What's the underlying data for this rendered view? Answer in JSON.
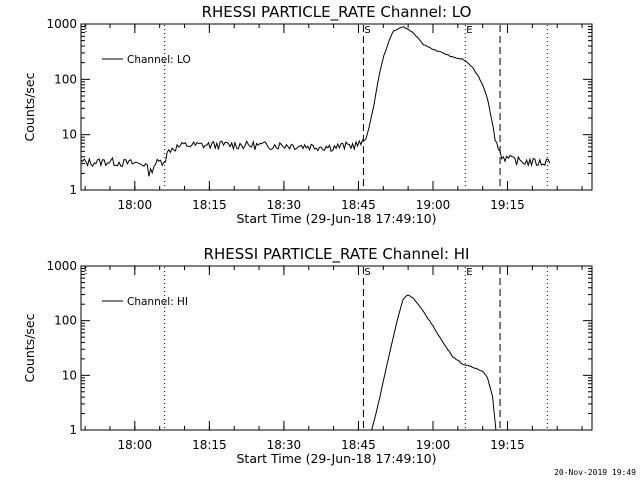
{
  "chart_data": [
    {
      "type": "line",
      "title": "RHESSI PARTICLE_RATE Channel: LO",
      "xlabel": "Start Time (29-Jun-18 17:49:10)",
      "ylabel": "Counts/sec",
      "yscale": "log",
      "ylim": [
        1,
        1000
      ],
      "xlim": [
        "17:49:10",
        "19:32:00"
      ],
      "x_ticks": [
        "18:00",
        "18:15",
        "18:30",
        "18:45",
        "19:00",
        "19:15"
      ],
      "y_ticks": [
        "1",
        "10",
        "100",
        "1000"
      ],
      "legend": "Channel: LO",
      "legend_position": "top-left",
      "markers": [
        {
          "time": "18:06:00",
          "style": "dotted",
          "label": ""
        },
        {
          "time": "18:46:00",
          "style": "dashed",
          "label": "S"
        },
        {
          "time": "19:06:30",
          "style": "dotted",
          "label": "E"
        },
        {
          "time": "19:13:30",
          "style": "dashed",
          "label": ""
        },
        {
          "time": "19:23:00",
          "style": "dotted",
          "label": ""
        }
      ],
      "series": [
        {
          "name": "Channel: LO",
          "x": [
            "17:49:10",
            "17:52:00",
            "17:55:00",
            "17:58:00",
            "18:02:00",
            "18:03:00",
            "18:04:00",
            "18:06:00",
            "18:07:00",
            "18:10:00",
            "18:15:00",
            "18:20:00",
            "18:25:00",
            "18:30:00",
            "18:35:00",
            "18:40:00",
            "18:44:00",
            "18:46:00",
            "18:47:00",
            "18:48:00",
            "18:49:00",
            "18:50:00",
            "18:51:00",
            "18:52:00",
            "18:54:00",
            "18:56:00",
            "18:58:00",
            "19:00:00",
            "19:02:00",
            "19:04:00",
            "19:06:00",
            "19:07:00",
            "19:08:00",
            "19:09:00",
            "19:10:00",
            "19:11:00",
            "19:12:00",
            "19:13:00",
            "19:14:00",
            "19:16:00",
            "19:18:00",
            "19:20:00",
            "19:22:00",
            "19:23:30"
          ],
          "y": [
            3.2,
            3.2,
            3.3,
            3.1,
            3.0,
            2.0,
            3.0,
            3.5,
            5.5,
            6.5,
            6.5,
            6.6,
            6.4,
            6.5,
            6.2,
            6.0,
            6.5,
            7.0,
            12,
            30,
            100,
            250,
            450,
            750,
            900,
            700,
            430,
            350,
            300,
            250,
            230,
            200,
            160,
            120,
            80,
            45,
            15,
            6,
            4,
            3.5,
            3.3,
            3.2,
            3.1,
            3.5
          ]
        }
      ]
    },
    {
      "type": "line",
      "title": "RHESSI PARTICLE_RATE Channel: HI",
      "xlabel": "Start Time (29-Jun-18 17:49:10)",
      "ylabel": "Counts/sec",
      "yscale": "log",
      "ylim": [
        1,
        1000
      ],
      "xlim": [
        "17:49:10",
        "19:32:00"
      ],
      "x_ticks": [
        "18:00",
        "18:15",
        "18:30",
        "18:45",
        "19:00",
        "19:15"
      ],
      "y_ticks": [
        "1",
        "10",
        "100",
        "1000"
      ],
      "legend": "Channel: HI",
      "legend_position": "top-left",
      "markers": [
        {
          "time": "18:06:00",
          "style": "dotted",
          "label": ""
        },
        {
          "time": "18:46:00",
          "style": "dashed",
          "label": "S"
        },
        {
          "time": "19:06:30",
          "style": "dotted",
          "label": "E"
        },
        {
          "time": "19:13:30",
          "style": "dashed",
          "label": ""
        },
        {
          "time": "19:23:00",
          "style": "dotted",
          "label": ""
        }
      ],
      "series": [
        {
          "name": "Channel: HI",
          "x": [
            "18:47:40",
            "18:49:00",
            "18:51:00",
            "18:53:00",
            "18:54:00",
            "18:55:00",
            "18:56:00",
            "18:58:00",
            "19:00:00",
            "19:02:00",
            "19:04:00",
            "19:06:00",
            "19:08:00",
            "19:10:00",
            "19:11:00",
            "19:12:00",
            "19:12:40"
          ],
          "y": [
            1.0,
            3.0,
            20,
            120,
            250,
            300,
            260,
            150,
            80,
            40,
            22,
            16,
            14,
            12,
            9,
            4,
            1.0
          ]
        }
      ]
    }
  ],
  "footer": "20-Nov-2019 19:49"
}
